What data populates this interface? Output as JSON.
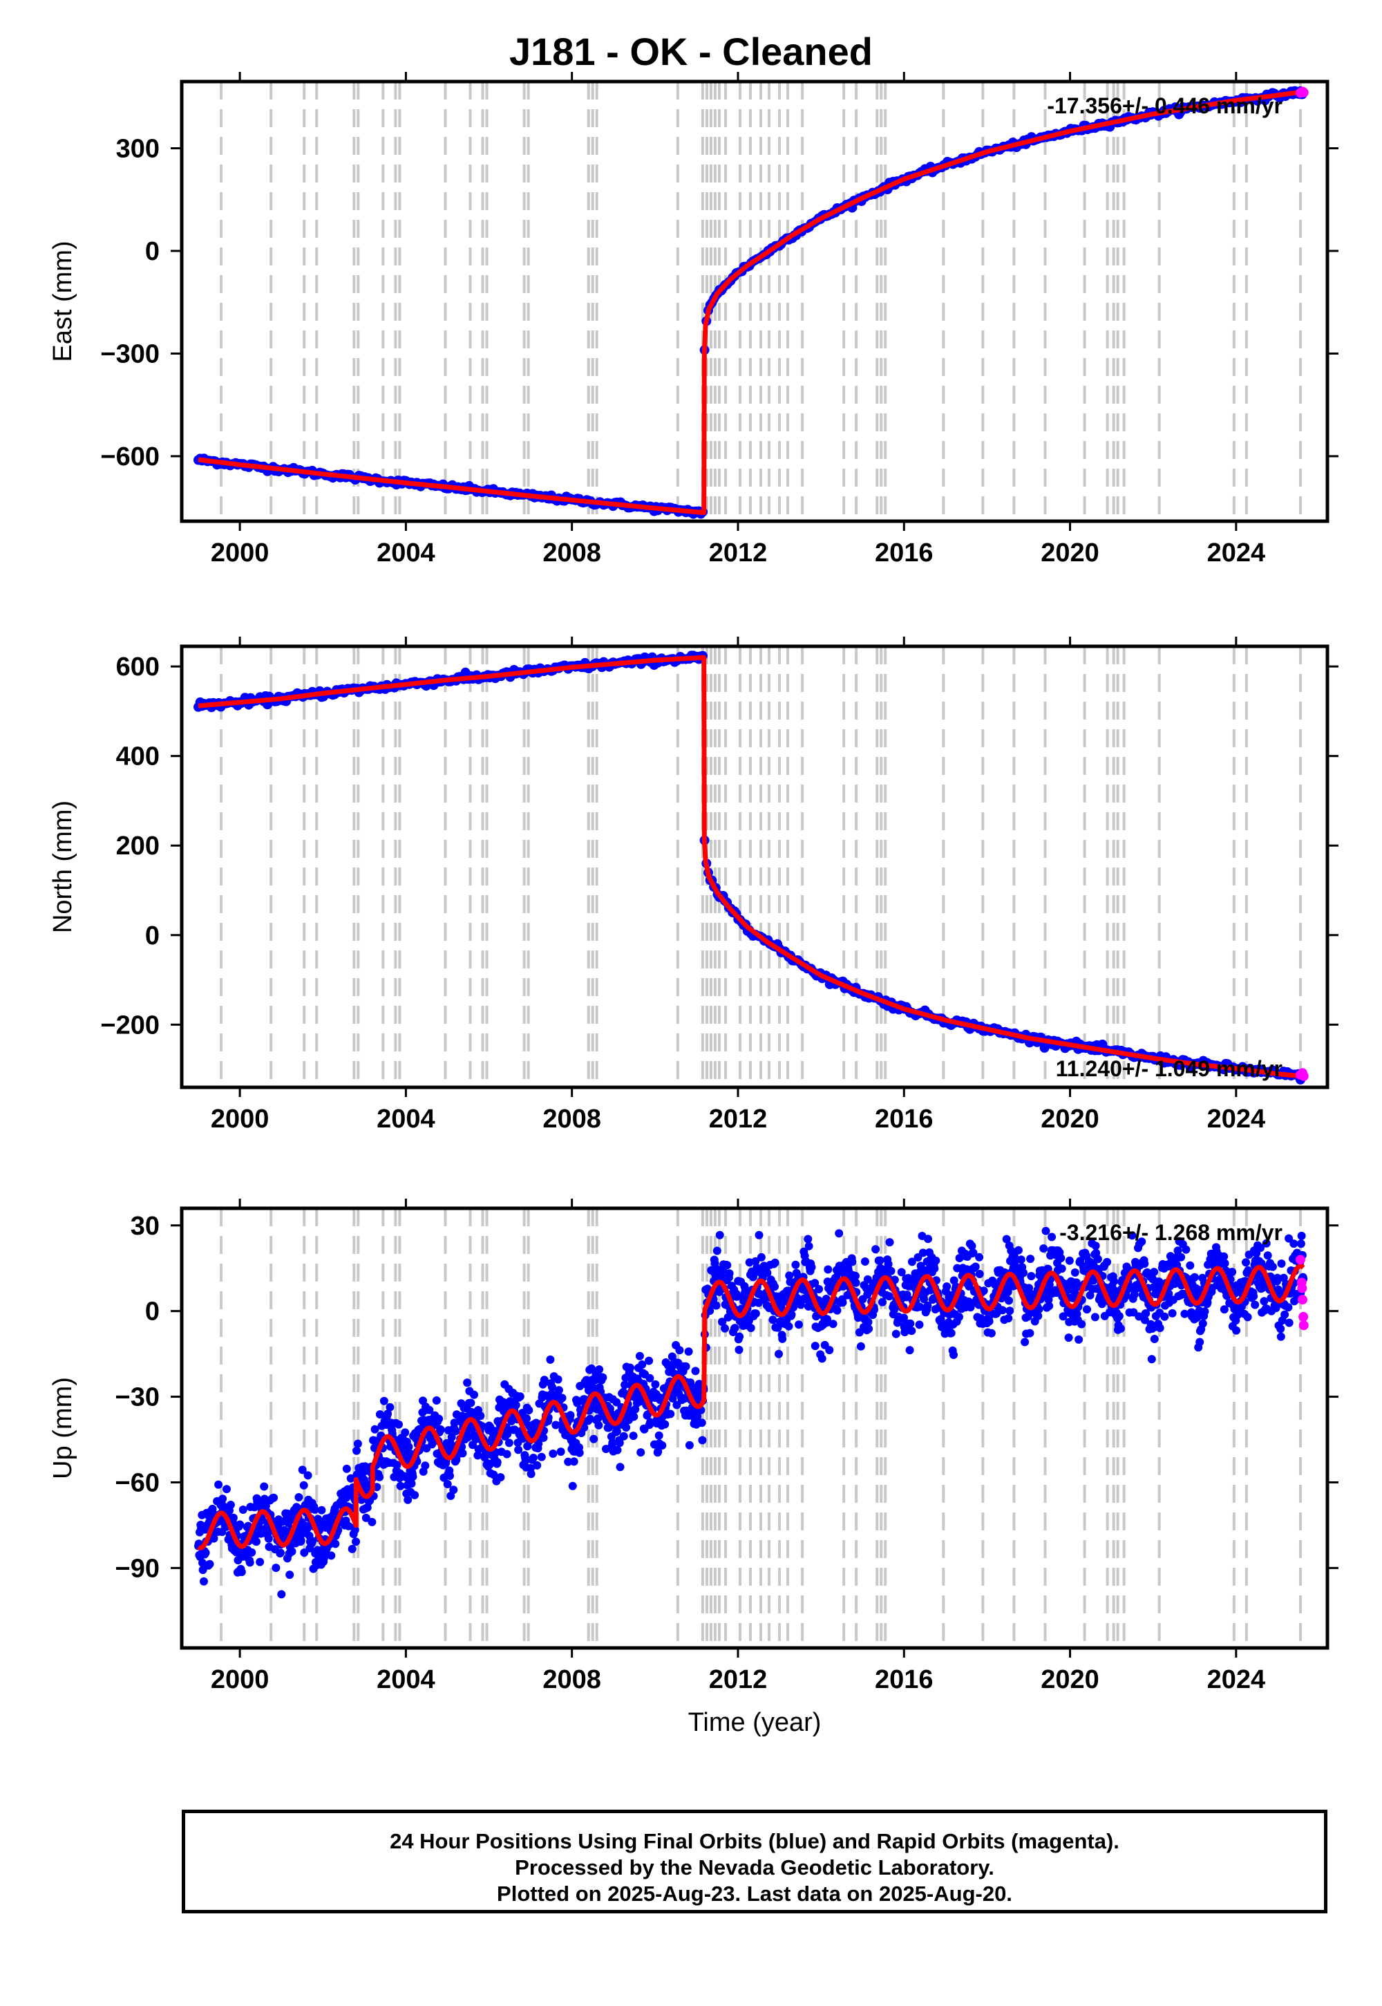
{
  "title": "J181  - OK - Cleaned",
  "footer": {
    "line1": "24 Hour Positions Using Final Orbits (blue) and Rapid Orbits (magenta).",
    "line2": "Processed by the Nevada Geodetic Laboratory.",
    "line3": "Plotted on 2025-Aug-23. Last data on 2025-Aug-20."
  },
  "colors": {
    "final": "#0000ff",
    "rapid": "#ff00ff",
    "model": "#ff0000",
    "steps": "#c8c8c8"
  },
  "chart_data": [
    {
      "type": "scatter",
      "component": "east",
      "ylabel": "East (mm)",
      "xlabel": "",
      "xlim": [
        1998.6,
        2026.2
      ],
      "ylim": [
        -790,
        495
      ],
      "xticks": [
        2000,
        2004,
        2008,
        2012,
        2016,
        2020,
        2024
      ],
      "yticks": [
        -600,
        -300,
        0,
        300
      ],
      "ytick_labels": [
        "−600",
        "−300",
        "0",
        "300"
      ],
      "rate_label": "-17.356+/- 0.446 mm/yr",
      "rate_position": "top-right",
      "model_points": [
        [
          1999.0,
          -610
        ],
        [
          2000.0,
          -625
        ],
        [
          2001.0,
          -638
        ],
        [
          2002.0,
          -652
        ],
        [
          2003.0,
          -665
        ],
        [
          2004.0,
          -678
        ],
        [
          2005.0,
          -690
        ],
        [
          2006.0,
          -703
        ],
        [
          2007.0,
          -716
        ],
        [
          2008.0,
          -728
        ],
        [
          2009.0,
          -740
        ],
        [
          2010.0,
          -752
        ],
        [
          2011.18,
          -765
        ],
        [
          2011.19,
          -300
        ],
        [
          2011.22,
          -215
        ],
        [
          2011.3,
          -170
        ],
        [
          2011.5,
          -125
        ],
        [
          2011.8,
          -85
        ],
        [
          2012.2,
          -45
        ],
        [
          2012.7,
          -5
        ],
        [
          2013.3,
          45
        ],
        [
          2014.0,
          95
        ],
        [
          2015.0,
          155
        ],
        [
          2016.0,
          210
        ],
        [
          2017.0,
          250
        ],
        [
          2018.0,
          290
        ],
        [
          2019.0,
          320
        ],
        [
          2020.0,
          350
        ],
        [
          2021.0,
          375
        ],
        [
          2022.0,
          400
        ],
        [
          2023.0,
          420
        ],
        [
          2024.0,
          440
        ],
        [
          2025.0,
          455
        ],
        [
          2025.6,
          465
        ]
      ],
      "rapid_points": [
        [
          2025.55,
          462
        ],
        [
          2025.6,
          466
        ],
        [
          2025.63,
          463
        ]
      ]
    },
    {
      "type": "scatter",
      "component": "north",
      "ylabel": "North (mm)",
      "xlabel": "",
      "xlim": [
        1998.6,
        2026.2
      ],
      "ylim": [
        -340,
        645
      ],
      "xticks": [
        2000,
        2004,
        2008,
        2012,
        2016,
        2020,
        2024
      ],
      "yticks": [
        -200,
        0,
        200,
        400,
        600
      ],
      "ytick_labels": [
        "−200",
        "0",
        "200",
        "400",
        "600"
      ],
      "rate_label": "11.240+/- 1.049 mm/yr",
      "rate_position": "bottom-right",
      "model_points": [
        [
          1999.0,
          512
        ],
        [
          2000.0,
          520
        ],
        [
          2001.0,
          528
        ],
        [
          2002.0,
          540
        ],
        [
          2003.0,
          550
        ],
        [
          2004.0,
          560
        ],
        [
          2005.0,
          570
        ],
        [
          2006.0,
          578
        ],
        [
          2007.0,
          588
        ],
        [
          2008.0,
          598
        ],
        [
          2009.0,
          606
        ],
        [
          2010.0,
          614
        ],
        [
          2011.18,
          620
        ],
        [
          2011.19,
          215
        ],
        [
          2011.22,
          165
        ],
        [
          2011.3,
          130
        ],
        [
          2011.5,
          95
        ],
        [
          2011.8,
          60
        ],
        [
          2012.2,
          20
        ],
        [
          2012.7,
          -15
        ],
        [
          2013.3,
          -50
        ],
        [
          2014.0,
          -90
        ],
        [
          2015.0,
          -130
        ],
        [
          2016.0,
          -165
        ],
        [
          2017.0,
          -190
        ],
        [
          2018.0,
          -210
        ],
        [
          2019.0,
          -230
        ],
        [
          2020.0,
          -245
        ],
        [
          2021.0,
          -260
        ],
        [
          2022.0,
          -275
        ],
        [
          2023.0,
          -288
        ],
        [
          2024.0,
          -298
        ],
        [
          2025.0,
          -310
        ],
        [
          2025.6,
          -315
        ]
      ],
      "rapid_points": [
        [
          2025.55,
          -312
        ],
        [
          2025.6,
          -308
        ],
        [
          2025.63,
          -315
        ]
      ]
    },
    {
      "type": "scatter",
      "component": "up",
      "ylabel": "Up (mm)",
      "xlabel": "Time (year)",
      "xlim": [
        1998.6,
        2026.2
      ],
      "ylim": [
        -118,
        36
      ],
      "xticks": [
        2000,
        2004,
        2008,
        2012,
        2016,
        2020,
        2024
      ],
      "yticks": [
        -90,
        -60,
        -30,
        0,
        30
      ],
      "ytick_labels": [
        "−90",
        "−60",
        "−30",
        "0",
        "30"
      ],
      "rate_label": "-3.216+/- 1.268 mm/yr",
      "rate_position": "top-right",
      "segments": [
        {
          "start": 1999.0,
          "end": 2002.8,
          "offset": -77,
          "trend": 0.5
        },
        {
          "start": 2002.8,
          "end": 2003.2,
          "offset": -59,
          "trend": 0
        },
        {
          "start": 2003.2,
          "end": 2011.18,
          "offset": -51,
          "trend": 3.0
        },
        {
          "start": 2011.2,
          "end": 2025.63,
          "offset": 4,
          "trend": 0.4
        }
      ],
      "seasonal_amplitude": 6,
      "scatter_sigma": 6,
      "rapid_points": [
        [
          2025.55,
          18
        ],
        [
          2025.58,
          10
        ],
        [
          2025.6,
          4
        ],
        [
          2025.62,
          -2
        ],
        [
          2025.63,
          -5
        ],
        [
          2025.59,
          8
        ]
      ]
    }
  ],
  "step_epochs": [
    1999.55,
    2000.75,
    2001.55,
    2001.85,
    2002.75,
    2002.85,
    2003.45,
    2003.75,
    2003.85,
    2004.95,
    2005.55,
    2005.85,
    2005.95,
    2006.85,
    2006.95,
    2008.4,
    2008.5,
    2008.6,
    2010.55,
    2011.15,
    2011.25,
    2011.35,
    2011.45,
    2011.55,
    2011.7,
    2012.05,
    2012.3,
    2012.55,
    2012.75,
    2013.0,
    2013.2,
    2013.55,
    2014.55,
    2014.85,
    2015.35,
    2015.45,
    2015.55,
    2016.95,
    2017.9,
    2018.65,
    2019.4,
    2020.35,
    2020.9,
    2021.05,
    2021.15,
    2021.3,
    2022.15,
    2023.95,
    2024.25,
    2025.55
  ]
}
